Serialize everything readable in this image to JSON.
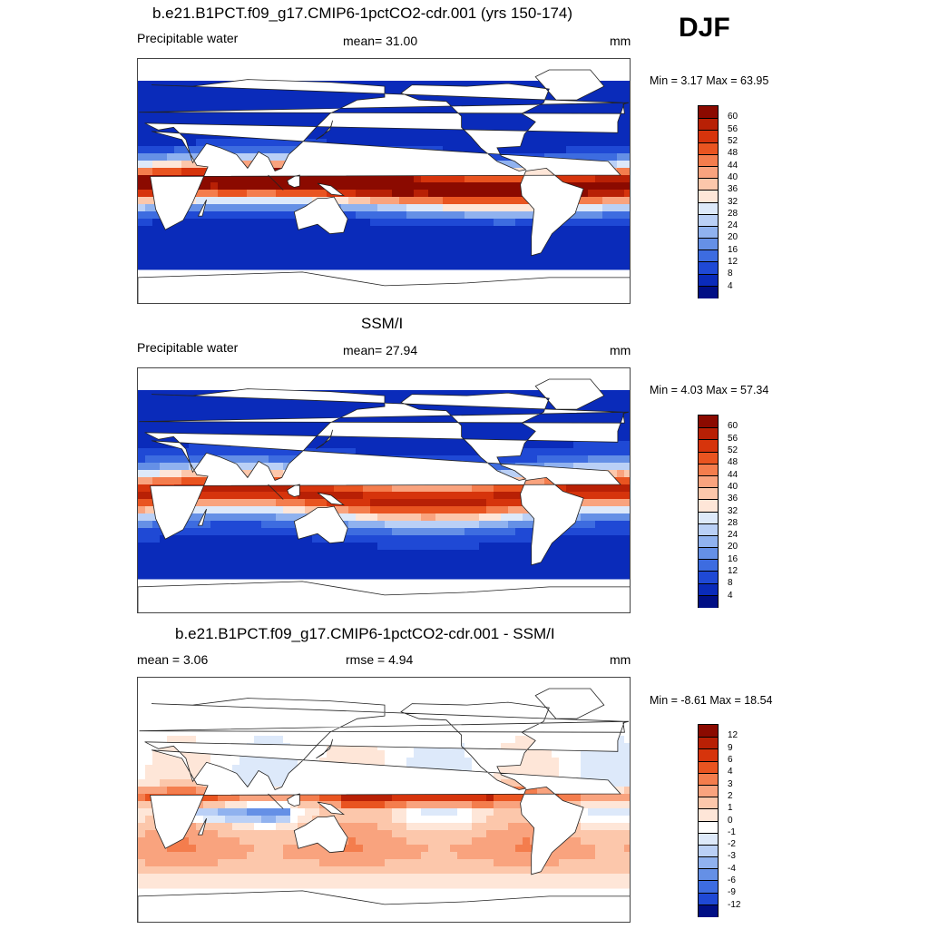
{
  "season": "DJF",
  "panels": [
    {
      "title": "b.e21.B1PCT.f09_g17.CMIP6-1pctCO2-cdr.001 (yrs 150-174)",
      "left_label": "Precipitable water",
      "center_label": "mean=  31.00",
      "right_label": "mm",
      "minmax": "Min =   3.17 Max =  63.95",
      "field": "model",
      "colorbar_labels": [
        "60",
        "56",
        "52",
        "48",
        "44",
        "40",
        "36",
        "32",
        "28",
        "24",
        "20",
        "16",
        "12",
        "8",
        "4"
      ]
    },
    {
      "title": "SSM/I",
      "left_label": "Precipitable water",
      "center_label": "mean=  27.94",
      "right_label": "mm",
      "minmax": "Min =   4.03 Max =  57.34",
      "field": "obs",
      "colorbar_labels": [
        "60",
        "56",
        "52",
        "48",
        "44",
        "40",
        "36",
        "32",
        "28",
        "24",
        "20",
        "16",
        "12",
        "8",
        "4"
      ]
    },
    {
      "title": "b.e21.B1PCT.f09_g17.CMIP6-1pctCO2-cdr.001 - SSM/I",
      "left_label": "mean =   3.06",
      "center_label": "rmse =   4.94",
      "right_label": "mm",
      "minmax": "Min =  -8.61 Max =  18.54",
      "field": "diff",
      "colorbar_labels": [
        "12",
        "9",
        "6",
        "4",
        "3",
        "2",
        "1",
        "0",
        "-1",
        "-2",
        "-3",
        "-4",
        "-6",
        "-9",
        "-12"
      ]
    }
  ],
  "colors": {
    "abs_scale": [
      "#8b0a00",
      "#b82005",
      "#d6340c",
      "#e95420",
      "#f47d4d",
      "#f9a37e",
      "#fcc7ab",
      "#fee6d8",
      "#dde9fa",
      "#bad0f6",
      "#90b2ef",
      "#6590e6",
      "#3d6ce0",
      "#1f49d5",
      "#0a2bba",
      "#000f85"
    ],
    "diff_scale": [
      "#8b0a00",
      "#b82005",
      "#d6340c",
      "#e95420",
      "#f47d4d",
      "#f9a37e",
      "#fcc7ab",
      "#fee6d8",
      "#ffffff",
      "#dde9fa",
      "#bad0f6",
      "#90b2ef",
      "#6590e6",
      "#3d6ce0",
      "#1f49d5",
      "#000f85"
    ]
  }
}
